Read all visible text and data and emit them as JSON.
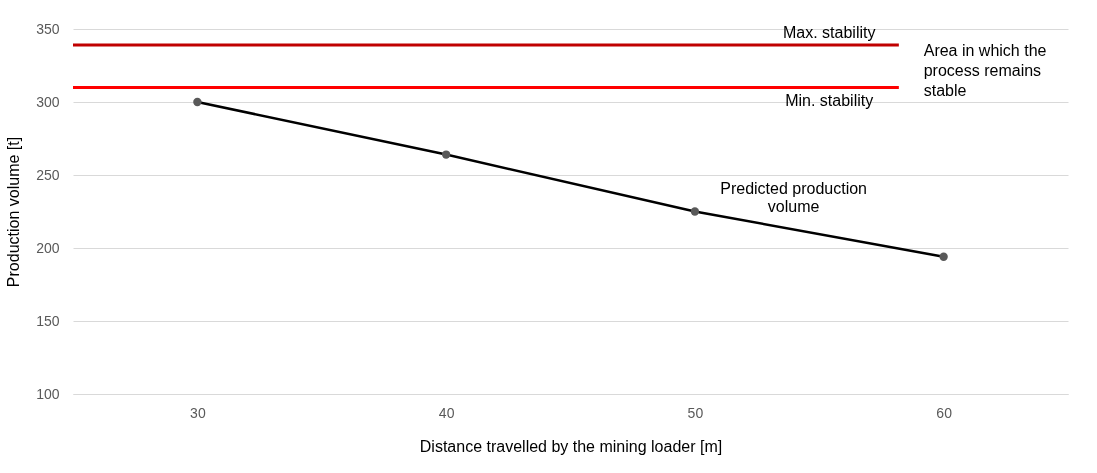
{
  "chart_data": {
    "type": "line",
    "xlabel": "Distance travelled by the mining loader [m]",
    "ylabel": "Production volume [t]",
    "categories": [
      "30",
      "40",
      "50",
      "60"
    ],
    "series": [
      {
        "name": "Predicted production volume",
        "color": "#000000",
        "values": [
          300,
          264,
          225,
          194
        ]
      }
    ],
    "marker": "circle",
    "grid": "y",
    "ylim": [
      100,
      350
    ],
    "yticks": [
      100,
      150,
      200,
      250,
      300,
      350
    ],
    "ref_lines": [
      {
        "axis": "y",
        "value": 339,
        "label": "Max. stability",
        "color": "#c00000"
      },
      {
        "axis": "y",
        "value": 310,
        "label": "Min. stability",
        "color": "#ff0000"
      }
    ],
    "annotations": [
      "Area in which the process remains stable"
    ]
  }
}
